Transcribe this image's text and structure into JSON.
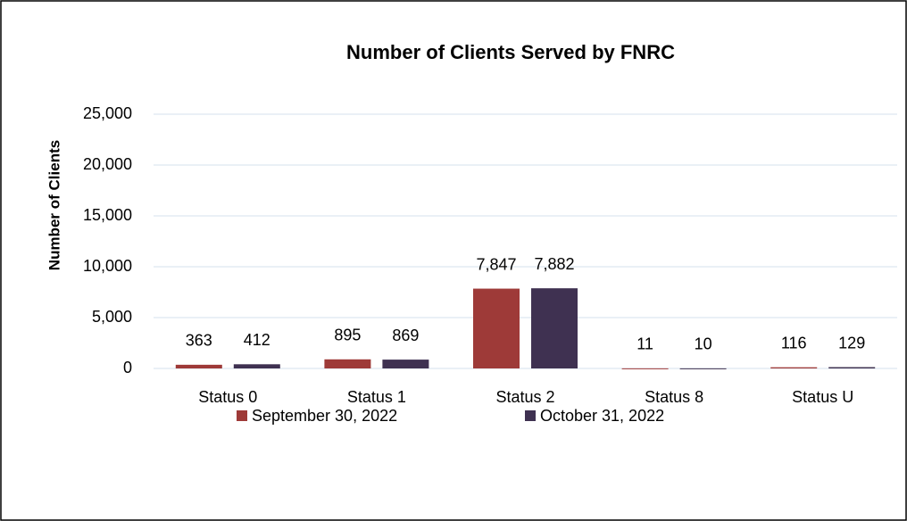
{
  "chart_data": {
    "type": "bar",
    "title": "Number of Clients Served by FNRC",
    "y_label": "Number of Clients",
    "categories": [
      "Status 0",
      "Status 1",
      "Status 2",
      "Status 8",
      "Status U"
    ],
    "series": [
      {
        "name": "September 30, 2022",
        "color": "#9e3a38",
        "values": [
          363,
          895,
          7847,
          11,
          116
        ],
        "value_labels": [
          "363",
          "895",
          "7,847",
          "11",
          "116"
        ]
      },
      {
        "name": "October 31, 2022",
        "color": "#3f3151",
        "values": [
          412,
          869,
          7882,
          10,
          129
        ],
        "value_labels": [
          "412",
          "869",
          "7,882",
          "10",
          "129"
        ]
      }
    ],
    "ylim": [
      0,
      25000
    ],
    "yticks": [
      0,
      {
        "value": 5000,
        "label": "5,000"
      },
      {
        "value": 10000,
        "label": "10,000"
      },
      {
        "value": 15000,
        "label": "15,000"
      },
      {
        "value": 20000,
        "label": "20,000"
      },
      {
        "value": 25000,
        "label": "25,000"
      }
    ],
    "grid": true,
    "legend": "bottom"
  }
}
